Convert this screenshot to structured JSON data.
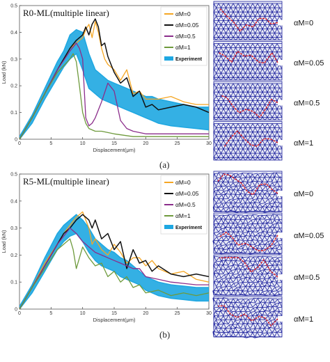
{
  "colors": {
    "alpha0": "#f5a623",
    "alpha005": "#111111",
    "alpha05": "#8b2d8b",
    "alpha1": "#6e9a3c",
    "experiment": "#1ea7e1",
    "lattice": "#1a1f9c",
    "crack": "#e02020"
  },
  "panel_labels": {
    "a": "(a)",
    "b": "(b)"
  },
  "lattice_labels": {
    "top": [
      "αM=0",
      "αM=0.05",
      "αM=0.5",
      "αM=1"
    ],
    "bottom": [
      "αM=0",
      "αM=0.05",
      "αM=0.5",
      "αM=1"
    ]
  },
  "chart_data": [
    {
      "type": "line",
      "title": "R0-ML(multiple linear)",
      "xlabel": "Displacement(μm)",
      "ylabel": "Load (kN)",
      "xlim": [
        0,
        30
      ],
      "ylim": [
        0,
        0.5
      ],
      "xticks": [
        0,
        5,
        10,
        15,
        20,
        25,
        30
      ],
      "yticks": [
        0,
        0.1,
        0.2,
        0.3,
        0.4,
        0.5
      ],
      "legend": [
        "αM=0",
        "αM=0.05",
        "αM=0.5",
        "αM=1",
        "Experiment"
      ],
      "legend_position": "top-right",
      "series": [
        {
          "name": "αM=0",
          "x": [
            0,
            2,
            4,
            6,
            8,
            9,
            10,
            10.5,
            11,
            11.5,
            12,
            12.5,
            13,
            13.5,
            14,
            15,
            16,
            17,
            18,
            19,
            20,
            22,
            24,
            26,
            28,
            30
          ],
          "y": [
            0,
            0.08,
            0.17,
            0.26,
            0.34,
            0.36,
            0.38,
            0.41,
            0.43,
            0.38,
            0.44,
            0.4,
            0.34,
            0.3,
            0.28,
            0.26,
            0.22,
            0.26,
            0.17,
            0.18,
            0.15,
            0.15,
            0.16,
            0.14,
            0.13,
            0.13
          ]
        },
        {
          "name": "αM=0.05",
          "x": [
            0,
            2,
            4,
            6,
            8,
            9,
            10,
            10.5,
            11,
            11.5,
            12,
            12.5,
            13,
            13.5,
            14,
            15,
            16,
            17,
            18,
            19,
            20,
            21,
            22,
            24,
            26,
            28,
            30
          ],
          "y": [
            0,
            0.08,
            0.17,
            0.26,
            0.34,
            0.37,
            0.39,
            0.42,
            0.39,
            0.43,
            0.45,
            0.42,
            0.35,
            0.36,
            0.31,
            0.25,
            0.21,
            0.23,
            0.16,
            0.18,
            0.12,
            0.13,
            0.11,
            0.12,
            0.13,
            0.12,
            0.1
          ]
        },
        {
          "name": "αM=0.5",
          "x": [
            0,
            2,
            4,
            6,
            8,
            9,
            9.5,
            10,
            10.5,
            11,
            11.5,
            12,
            13,
            14,
            15,
            16,
            17,
            18,
            20,
            25,
            30
          ],
          "y": [
            0,
            0.08,
            0.17,
            0.26,
            0.33,
            0.36,
            0.34,
            0.3,
            0.08,
            0.05,
            0.06,
            0.08,
            0.14,
            0.21,
            0.18,
            0.07,
            0.04,
            0.03,
            0.02,
            0.02,
            0.02
          ]
        },
        {
          "name": "αM=1",
          "x": [
            0,
            2,
            4,
            6,
            8,
            8.5,
            9,
            9.5,
            10,
            10.5,
            11,
            12,
            13,
            15,
            18,
            20,
            25,
            30
          ],
          "y": [
            0,
            0.08,
            0.17,
            0.25,
            0.3,
            0.32,
            0.29,
            0.2,
            0.1,
            0.06,
            0.04,
            0.03,
            0.03,
            0.02,
            0.01,
            0.01,
            0.01,
            0.01
          ]
        }
      ],
      "experiment_band": {
        "name": "Experiment",
        "x": [
          0,
          2,
          4,
          6,
          7,
          8,
          9,
          10,
          11,
          12,
          13,
          14,
          15,
          16,
          17,
          18,
          19,
          20,
          21,
          22,
          24,
          26,
          28,
          30
        ],
        "upper": [
          0.01,
          0.09,
          0.19,
          0.29,
          0.33,
          0.39,
          0.41,
          0.4,
          0.32,
          0.26,
          0.24,
          0.22,
          0.21,
          0.2,
          0.19,
          0.18,
          0.17,
          0.16,
          0.16,
          0.15,
          0.14,
          0.13,
          0.12,
          0.12
        ],
        "lower": [
          0,
          0.06,
          0.15,
          0.23,
          0.27,
          0.3,
          0.32,
          0.26,
          0.19,
          0.17,
          0.15,
          0.14,
          0.13,
          0.12,
          0.11,
          0.1,
          0.09,
          0.08,
          0.07,
          0.06,
          0.05,
          0.045,
          0.04,
          0.035
        ]
      }
    },
    {
      "type": "line",
      "title": "R5-ML(multiple linear)",
      "xlabel": "Displacement(μm)",
      "ylabel": "Load (kN)",
      "xlim": [
        0,
        30
      ],
      "ylim": [
        0,
        0.5
      ],
      "xticks": [
        0,
        5,
        10,
        15,
        20,
        25,
        30
      ],
      "yticks": [
        0,
        0.1,
        0.2,
        0.3,
        0.4,
        0.5
      ],
      "legend": [
        "αM=0",
        "αM=0.05",
        "αM=0.5",
        "αM=1",
        "Experiment"
      ],
      "legend_position": "top-right",
      "series": [
        {
          "name": "αM=0",
          "x": [
            0,
            2,
            4,
            6,
            7,
            8,
            9,
            10,
            10.5,
            11,
            11.5,
            12,
            13,
            14,
            15,
            16,
            17,
            18,
            19,
            20,
            21,
            22,
            24,
            26,
            28,
            30
          ],
          "y": [
            0,
            0.08,
            0.17,
            0.24,
            0.28,
            0.31,
            0.34,
            0.36,
            0.33,
            0.3,
            0.24,
            0.26,
            0.22,
            0.2,
            0.24,
            0.21,
            0.17,
            0.19,
            0.19,
            0.16,
            0.18,
            0.15,
            0.13,
            0.14,
            0.11,
            0.1
          ]
        },
        {
          "name": "αM=0.05",
          "x": [
            0,
            2,
            4,
            6,
            7,
            8,
            9,
            10,
            11,
            11.5,
            12,
            13,
            14,
            15,
            16,
            17,
            18,
            19,
            20,
            21,
            22,
            24,
            26,
            28,
            30
          ],
          "y": [
            0,
            0.08,
            0.16,
            0.24,
            0.28,
            0.3,
            0.33,
            0.35,
            0.33,
            0.3,
            0.33,
            0.26,
            0.28,
            0.22,
            0.25,
            0.15,
            0.22,
            0.17,
            0.18,
            0.14,
            0.16,
            0.13,
            0.12,
            0.13,
            0.12
          ]
        },
        {
          "name": "αM=0.5",
          "x": [
            0,
            2,
            4,
            6,
            7,
            8,
            9,
            10,
            11,
            12,
            13,
            14,
            15,
            16,
            17,
            18,
            19,
            20,
            22,
            24,
            26,
            28,
            30
          ],
          "y": [
            0,
            0.08,
            0.16,
            0.24,
            0.27,
            0.3,
            0.28,
            0.25,
            0.23,
            0.21,
            0.2,
            0.19,
            0.18,
            0.17,
            0.16,
            0.15,
            0.15,
            0.12,
            0.11,
            0.1,
            0.095,
            0.09,
            0.09
          ]
        },
        {
          "name": "αM=1",
          "x": [
            0,
            2,
            4,
            6,
            7,
            8,
            8.5,
            9,
            10,
            11,
            12,
            13,
            14,
            15,
            16,
            17,
            18,
            19,
            20,
            22,
            24,
            26,
            28,
            30
          ],
          "y": [
            0,
            0.08,
            0.15,
            0.22,
            0.24,
            0.26,
            0.22,
            0.15,
            0.23,
            0.19,
            0.16,
            0.17,
            0.12,
            0.14,
            0.1,
            0.12,
            0.08,
            0.09,
            0.06,
            0.07,
            0.05,
            0.06,
            0.05,
            0.06
          ]
        }
      ],
      "experiment_band": {
        "name": "Experiment",
        "x": [
          0,
          2,
          4,
          6,
          7,
          8,
          9,
          10,
          11,
          12,
          13,
          14,
          15,
          16,
          17,
          18,
          19,
          20,
          21,
          22,
          24,
          26,
          28,
          30
        ],
        "upper": [
          0.01,
          0.09,
          0.19,
          0.28,
          0.31,
          0.33,
          0.35,
          0.33,
          0.3,
          0.26,
          0.24,
          0.22,
          0.21,
          0.19,
          0.18,
          0.16,
          0.14,
          0.12,
          0.11,
          0.1,
          0.09,
          0.085,
          0.08,
          0.08
        ],
        "lower": [
          0,
          0.06,
          0.14,
          0.22,
          0.25,
          0.27,
          0.28,
          0.25,
          0.21,
          0.18,
          0.16,
          0.15,
          0.14,
          0.12,
          0.11,
          0.1,
          0.09,
          0.07,
          0.06,
          0.05,
          0.04,
          0.035,
          0.03,
          0.03
        ]
      }
    }
  ]
}
